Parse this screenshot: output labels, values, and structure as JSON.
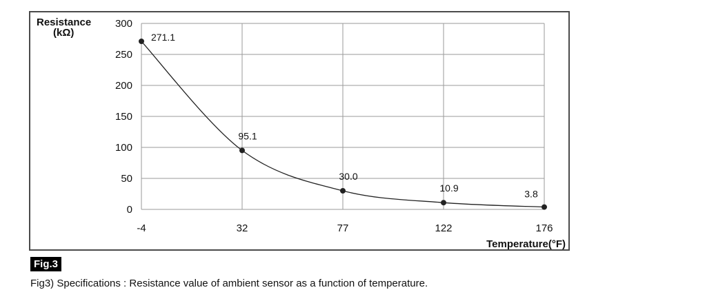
{
  "figure": {
    "badge": "Fig.3",
    "caption": "Fig3) Specifications : Resistance value of ambient sensor as a function of temperature."
  },
  "chart_data": {
    "type": "line",
    "title": "",
    "ylabel": "Resistance",
    "ylabel_unit": "(kΩ)",
    "xlabel": "Temperature(°F)",
    "x": [
      "-4",
      "32",
      "77",
      "122",
      "176"
    ],
    "x_tick_labels": [
      "-4",
      "32",
      "77",
      "122",
      "176"
    ],
    "series": [
      {
        "values": [
          271.1,
          95.1,
          30.0,
          10.9,
          3.8
        ],
        "labels": [
          "271.1",
          "95.1",
          "30.0",
          "10.9",
          "3.8"
        ]
      }
    ],
    "ylim": [
      0,
      300
    ],
    "y_ticks": [
      0,
      50,
      100,
      150,
      200,
      250,
      300
    ],
    "grid": true,
    "legend": "none",
    "colors": {
      "line": "#222222",
      "marker": "#222222",
      "grid": "#9a9a9a"
    }
  }
}
